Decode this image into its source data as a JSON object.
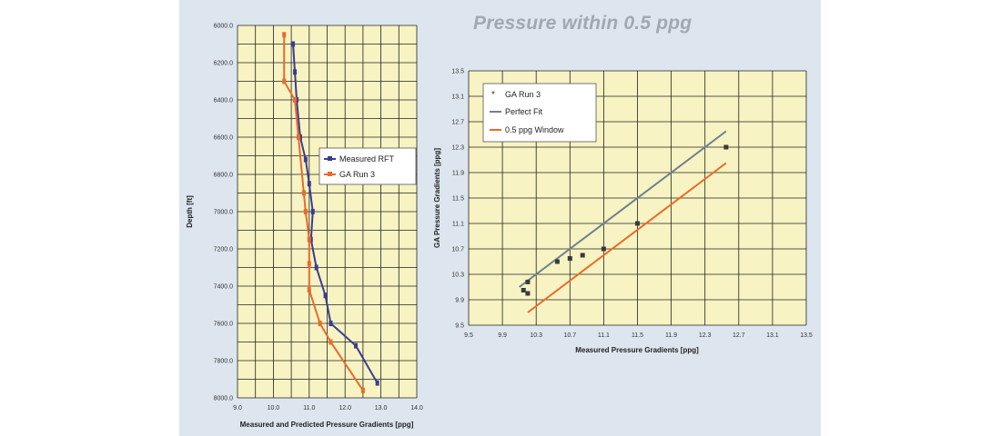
{
  "slide_title": "Pressure within 0.5 ppg",
  "colors": {
    "plot_bg": "#f7f3c2",
    "grid": "#222222",
    "measured": "#3a3d8f",
    "ga": "#ea6a2a",
    "perfect_fit": "#6e8090",
    "window": "#ea6a2a",
    "points": "#3a3a3a"
  },
  "chart_data": [
    {
      "type": "line",
      "xlabel": "Measured and Predicted Pressure Gradients [ppg]",
      "ylabel": "Depth [ft]",
      "xlim": [
        9.0,
        14.0
      ],
      "ylim": [
        8000.0,
        6000.0
      ],
      "x_ticks": [
        "9.0",
        "10.0",
        "11.0",
        "12.0",
        "13.0",
        "14.0"
      ],
      "y_ticks": [
        "6000.0",
        "6200.0",
        "6400.0",
        "6600.0",
        "6800.0",
        "7000.0",
        "7200.0",
        "7400.0",
        "7600.0",
        "7800.0",
        "8000.0"
      ],
      "series": [
        {
          "name": "Measured RFT",
          "color": "#3a3d8f",
          "points": [
            [
              10.55,
              6100
            ],
            [
              10.6,
              6250
            ],
            [
              10.65,
              6400
            ],
            [
              10.75,
              6600
            ],
            [
              10.9,
              6720
            ],
            [
              11.0,
              6850
            ],
            [
              11.1,
              7000
            ],
            [
              11.05,
              7150
            ],
            [
              11.2,
              7300
            ],
            [
              11.45,
              7450
            ],
            [
              11.6,
              7600
            ],
            [
              12.3,
              7720
            ],
            [
              12.9,
              7920
            ]
          ]
        },
        {
          "name": "GA Run 3",
          "color": "#ea6a2a",
          "points": [
            [
              10.3,
              6050
            ],
            [
              10.3,
              6300
            ],
            [
              10.6,
              6400
            ],
            [
              10.7,
              6600
            ],
            [
              10.85,
              6900
            ],
            [
              10.9,
              7000
            ],
            [
              11.0,
              7150
            ],
            [
              11.0,
              7280
            ],
            [
              11.0,
              7420
            ],
            [
              11.3,
              7600
            ],
            [
              11.6,
              7700
            ],
            [
              12.5,
              7960
            ]
          ]
        }
      ]
    },
    {
      "type": "scatter",
      "xlabel": "Measured Pressure Gradients [ppg]",
      "ylabel": "GA Pressure Gradients [ppg]",
      "xlim": [
        9.5,
        13.5
      ],
      "ylim": [
        9.5,
        13.5
      ],
      "x_ticks": [
        "9.5",
        "9.9",
        "10.3",
        "10.7",
        "11.1",
        "11.5",
        "11.9",
        "12.3",
        "12.7",
        "13.1",
        "13.5"
      ],
      "y_ticks": [
        "13.5",
        "13.1",
        "12.7",
        "12.3",
        "11.9",
        "11.5",
        "11.1",
        "10.7",
        "10.3",
        "9.9",
        "9.5"
      ],
      "series": [
        {
          "name": "GA Run 3",
          "color": "#3a3a3a",
          "points": [
            [
              10.15,
              10.05
            ],
            [
              10.2,
              10.0
            ],
            [
              10.2,
              10.18
            ],
            [
              10.55,
              10.5
            ],
            [
              10.7,
              10.55
            ],
            [
              10.85,
              10.6
            ],
            [
              11.1,
              10.7
            ],
            [
              11.5,
              11.1
            ],
            [
              12.55,
              12.3
            ]
          ]
        },
        {
          "name": "Perfect Fit",
          "color": "#6e8090",
          "line": [
            [
              10.1,
              10.1
            ],
            [
              12.55,
              12.55
            ]
          ]
        },
        {
          "name": "0.5 ppg Window",
          "color": "#ea6a2a",
          "line": [
            [
              10.2,
              9.7
            ],
            [
              12.55,
              12.05
            ]
          ]
        }
      ]
    }
  ]
}
